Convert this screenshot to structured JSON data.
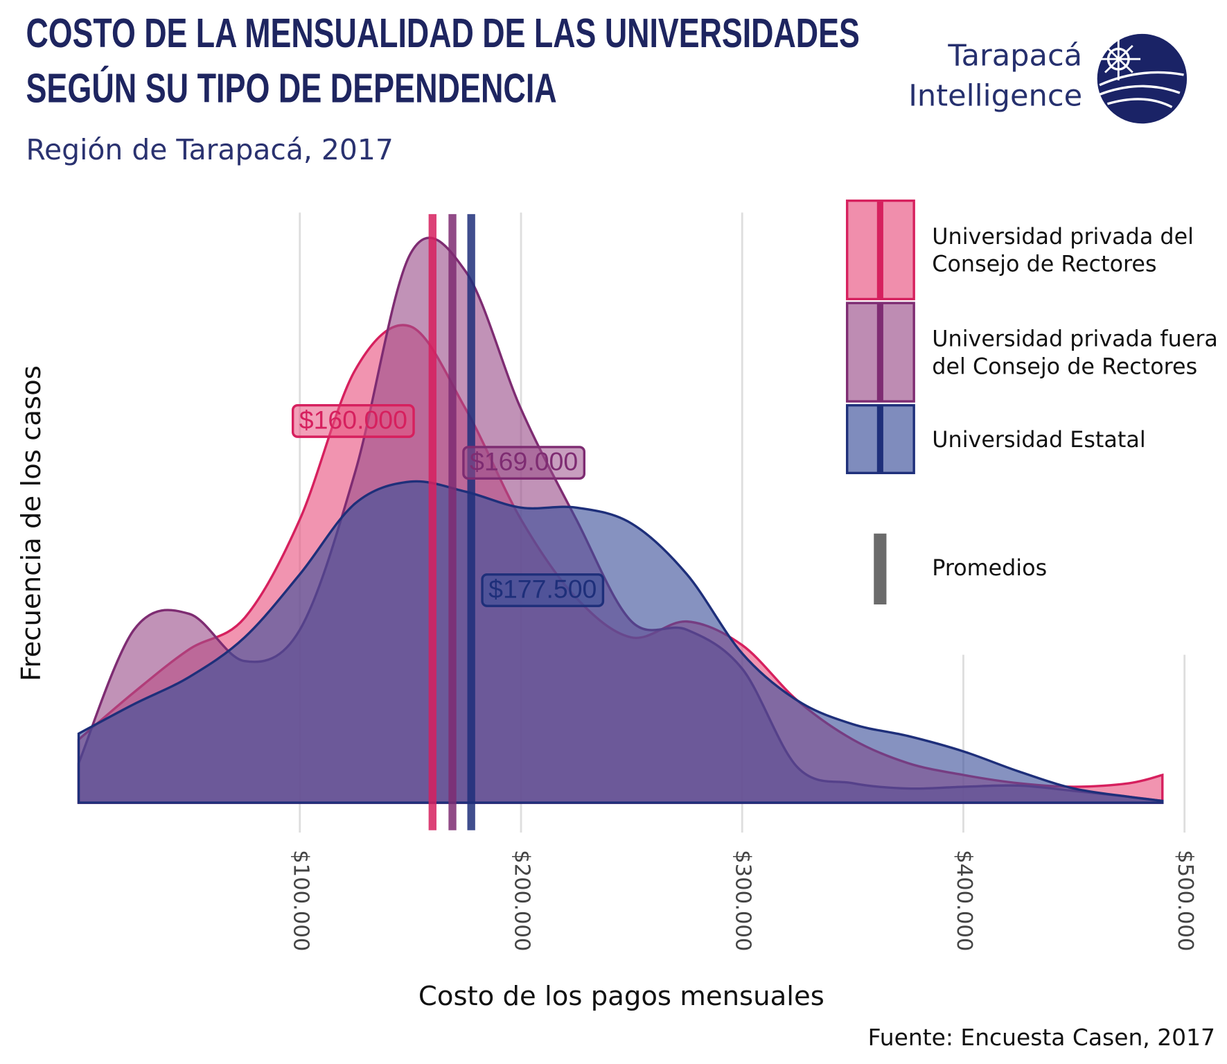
{
  "logo": {
    "line1": "Tarapacá",
    "line2": "Intelligence"
  },
  "chart_data": {
    "type": "density",
    "title": [
      "COSTO DE LA MENSUALIDAD DE LAS UNIVERSIDADES",
      "SEGÚN SU TIPO DE DEPENDENCIA"
    ],
    "subtitle": "Región de Tarapacá, 2017",
    "x_label": "Costo de los pagos mensuales",
    "y_label": "Frecuencia de los casos",
    "source": "Fuente: Encuesta Casen, 2017",
    "x": [
      0,
      25000,
      50000,
      75000,
      100000,
      125000,
      150000,
      175000,
      200000,
      225000,
      250000,
      275000,
      300000,
      325000,
      350000,
      375000,
      400000,
      425000,
      450000,
      475000,
      490000
    ],
    "series": [
      {
        "name": "Universidad privada del Consejo de Rectores",
        "color": "#e8527f",
        "line_color": "#d6205e",
        "mean": 160000,
        "mean_label": "$160.000",
        "values": [
          0.107,
          0.187,
          0.26,
          0.313,
          0.48,
          0.733,
          0.807,
          0.667,
          0.48,
          0.347,
          0.28,
          0.307,
          0.267,
          0.173,
          0.107,
          0.067,
          0.047,
          0.033,
          0.027,
          0.033,
          0.047
        ]
      },
      {
        "name": "Universidad privada fuera del Consejo de Rectores",
        "color": "#9b4f8b",
        "line_color": "#7e2c72",
        "mean": 169000,
        "mean_label": "$169.000",
        "values": [
          0.067,
          0.293,
          0.32,
          0.24,
          0.293,
          0.56,
          0.93,
          0.9,
          0.667,
          0.48,
          0.307,
          0.293,
          0.227,
          0.06,
          0.033,
          0.024,
          0.027,
          0.029,
          0.02,
          0.01,
          0.003
        ]
      },
      {
        "name": "Universidad Estatal",
        "color": "#3b4f99",
        "line_color": "#1e2f7a",
        "mean": 177500,
        "mean_label": "$177.500",
        "values": [
          0.117,
          0.167,
          0.213,
          0.28,
          0.387,
          0.507,
          0.544,
          0.527,
          0.5,
          0.5,
          0.473,
          0.387,
          0.253,
          0.173,
          0.133,
          0.113,
          0.087,
          0.053,
          0.024,
          0.01,
          0.003
        ]
      }
    ],
    "mean_legend": "Promedios",
    "xlim": [
      0,
      500000
    ],
    "xticks": [
      {
        "value": 100000,
        "label": "$100.000"
      },
      {
        "value": 200000,
        "label": "$200.000"
      },
      {
        "value": 300000,
        "label": "$300.000"
      },
      {
        "value": 400000,
        "label": "$400.000"
      },
      {
        "value": 500000,
        "label": "$500.000"
      }
    ],
    "ylim": [
      0,
      1
    ],
    "grid": true
  }
}
